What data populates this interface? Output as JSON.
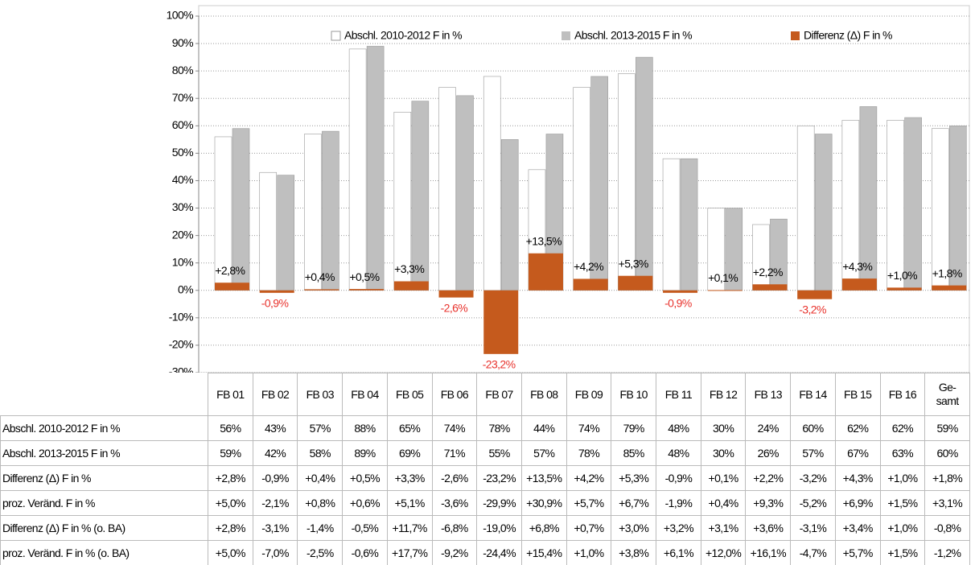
{
  "chart_data": {
    "type": "bar",
    "categories": [
      "FB 01",
      "FB 02",
      "FB 03",
      "FB 04",
      "FB 05",
      "FB 06",
      "FB 07",
      "FB 08",
      "FB 09",
      "FB 10",
      "FB 11",
      "FB 12",
      "FB 13",
      "FB 14",
      "FB 15",
      "FB 16",
      "Ge-\nsamt"
    ],
    "series": [
      {
        "name": "Abschl. 2010-2012 F in %",
        "color": "#ffffff",
        "values": [
          56,
          43,
          57,
          88,
          65,
          74,
          78,
          44,
          74,
          79,
          48,
          30,
          24,
          60,
          62,
          62,
          59
        ],
        "value_labels": [
          "56%",
          "43%",
          "57%",
          "88%",
          "65%",
          "74%",
          "78%",
          "44%",
          "74%",
          "79%",
          "48%",
          "30%",
          "24%",
          "60%",
          "62%",
          "62%",
          "59%"
        ]
      },
      {
        "name": "Abschl. 2013-2015 F in %",
        "color": "#bfbfbf",
        "values": [
          59,
          42,
          58,
          89,
          69,
          71,
          55,
          57,
          78,
          85,
          48,
          30,
          26,
          57,
          67,
          63,
          60
        ],
        "value_labels": [
          "59%",
          "42%",
          "58%",
          "89%",
          "69%",
          "71%",
          "55%",
          "57%",
          "78%",
          "85%",
          "48%",
          "30%",
          "26%",
          "57%",
          "67%",
          "63%",
          "60%"
        ]
      },
      {
        "name": "Differenz (Δ) F in %",
        "color": "#c55a1d",
        "values": [
          2.8,
          -0.9,
          0.4,
          0.5,
          3.3,
          -2.6,
          -23.2,
          13.5,
          4.2,
          5.3,
          -0.9,
          0.1,
          2.2,
          -3.2,
          4.3,
          1.0,
          1.8
        ],
        "value_labels": [
          "+2,8%",
          "-0,9%",
          "+0,4%",
          "+0,5%",
          "+3,3%",
          "-2,6%",
          "-23,2%",
          "+13,5%",
          "+4,2%",
          "+5,3%",
          "-0,9%",
          "+0,1%",
          "+2,2%",
          "-3,2%",
          "+4,3%",
          "+1,0%",
          "+1,8%"
        ]
      }
    ],
    "rows": [
      {
        "name": "proz. Veränd. F in %",
        "cells": [
          "+5,0%",
          "-2,1%",
          "+0,8%",
          "+0,6%",
          "+5,1%",
          "-3,6%",
          "-29,9%",
          "+30,9%",
          "+5,7%",
          "+6,7%",
          "-1,9%",
          "+0,4%",
          "+9,3%",
          "-5,2%",
          "+6,9%",
          "+1,5%",
          "+3,1%"
        ]
      },
      {
        "name": "Differenz (Δ) F in % (o. BA)",
        "cells": [
          "+2,8%",
          "-3,1%",
          "-1,4%",
          "-0,5%",
          "+11,7%",
          "-6,8%",
          "-19,0%",
          "+6,8%",
          "+0,7%",
          "+3,0%",
          "+3,2%",
          "+3,1%",
          "+3,6%",
          "-3,1%",
          "+3,4%",
          "+1,0%",
          "-0,8%"
        ]
      },
      {
        "name": "proz. Veränd. F in % (o. BA)",
        "cells": [
          "+5,0%",
          "-7,0%",
          "-2,5%",
          "-0,6%",
          "+17,7%",
          "-9,2%",
          "-24,4%",
          "+15,4%",
          "+1,0%",
          "+3,8%",
          "+6,1%",
          "+12,0%",
          "+16,1%",
          "-4,7%",
          "+5,7%",
          "+1,5%",
          "-1,2%"
        ]
      }
    ],
    "ylim": [
      -30,
      100
    ],
    "yticks": [
      {
        "value": -30,
        "label": "-30%"
      },
      {
        "value": -20,
        "label": "-20%"
      },
      {
        "value": -10,
        "label": "-10%"
      },
      {
        "value": 0,
        "label": "0%"
      },
      {
        "value": 10,
        "label": "10%"
      },
      {
        "value": 20,
        "label": "20%"
      },
      {
        "value": 30,
        "label": "30%"
      },
      {
        "value": 40,
        "label": "40%"
      },
      {
        "value": 50,
        "label": "50%"
      },
      {
        "value": 60,
        "label": "60%"
      },
      {
        "value": 70,
        "label": "70%"
      },
      {
        "value": 80,
        "label": "80%"
      },
      {
        "value": 90,
        "label": "90%"
      },
      {
        "value": 100,
        "label": "100%"
      }
    ],
    "grid": true,
    "legend": "top"
  }
}
